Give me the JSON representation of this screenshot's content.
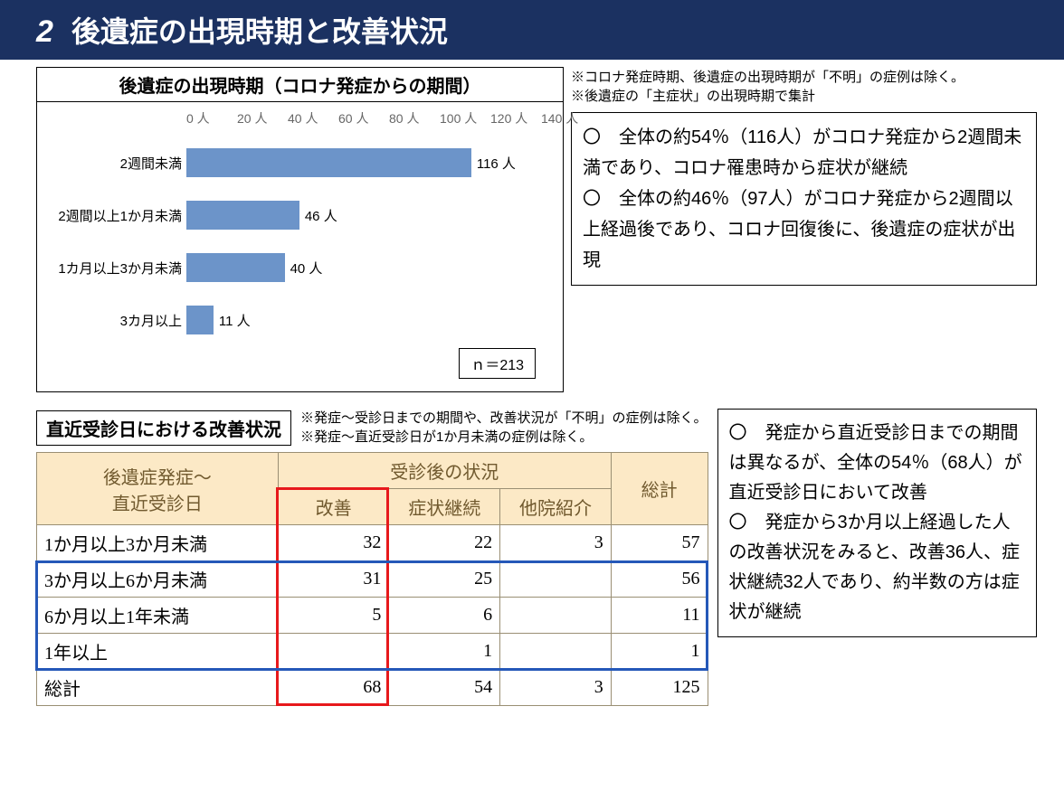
{
  "banner": {
    "num": "2",
    "title": "後遺症の出現時期と改善状況"
  },
  "chart": {
    "title": "後遺症の出現時期（コロナ発症からの期間）",
    "type": "bar-horizontal",
    "unit_suffix": " 人",
    "x_ticks": [
      "0 人",
      "20 人",
      "40 人",
      "60 人",
      "80 人",
      "100 人",
      "120 人",
      "140 人"
    ],
    "x_max": 140,
    "bar_color": "#6c94c9",
    "background_color": "#ffffff",
    "grid_color": "#d6d6d6",
    "label_fontsize": 15,
    "categories": [
      "2週間未満",
      "2週間以上1か月未満",
      "1カ月以上3か月未満",
      "3カ月以上"
    ],
    "values": [
      116,
      46,
      40,
      11
    ],
    "n_label": "ｎ＝213"
  },
  "top_notes": [
    "※コロナ発症時期、後遺症の出現時期が「不明」の症例は除く。",
    "※後遺症の「主症状」の出現時期で集計"
  ],
  "top_bullets": [
    "〇　全体の約54％（116人）がコロナ発症から2週間未満であり、コロナ罹患時から症状が継続",
    "〇　全体の約46％（97人）がコロナ発症から2週間以上経過後であり、コロナ回復後に、後遺症の症状が出現"
  ],
  "section2": {
    "title": "直近受診日における改善状況",
    "notes": [
      "※発症～受診日までの期間や、改善状況が「不明」の症例は除く。",
      "※発症～直近受診日が1か月未満の症例は除く。"
    ],
    "header_bg": "#fce9c6",
    "header_color": "#715a2f",
    "border_color": "#9a8f74",
    "highlight_red": "#e7191c",
    "highlight_blue": "#2558b8",
    "col_group1": "後遺症発症～\n直近受診日",
    "col_group2": "受診後の状況",
    "sub_cols": [
      "改善",
      "症状継続",
      "他院紹介"
    ],
    "total_col": "総計",
    "rows": [
      {
        "label": "1か月以上3か月未満",
        "vals": [
          "32",
          "22",
          "3",
          "57"
        ]
      },
      {
        "label": "3か月以上6か月未満",
        "vals": [
          "31",
          "25",
          "",
          "56"
        ]
      },
      {
        "label": "6か月以上1年未満",
        "vals": [
          "5",
          "6",
          "",
          "11"
        ]
      },
      {
        "label": "1年以上",
        "vals": [
          "",
          "1",
          "",
          "1"
        ]
      },
      {
        "label": "総計",
        "vals": [
          "68",
          "54",
          "3",
          "125"
        ]
      }
    ],
    "bullets": [
      "〇　発症から直近受診日までの期間は異なるが、全体の54％（68人）が直近受診日において改善",
      "〇　発症から3か月以上経過した人の改善状況をみると、改善36人、症状継続32人であり、約半数の方は症状が継続"
    ]
  }
}
